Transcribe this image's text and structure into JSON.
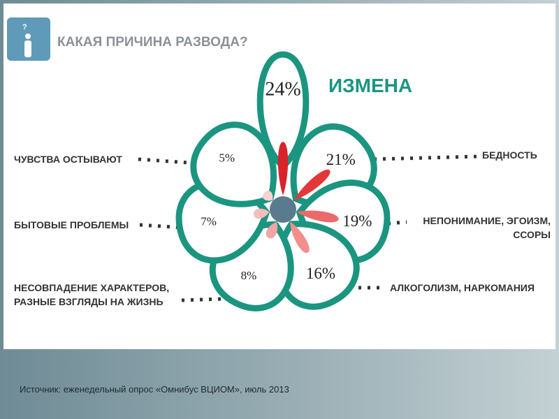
{
  "chart_data": {
    "type": "flower",
    "title": "КАКАЯ ПРИЧИНА РАЗВОДА?",
    "categories": [
      "ИЗМЕНА",
      "БЕДНОСТЬ",
      "НЕПОНИМАНИЕ, ЭГОИЗМ,\nССОРЫ",
      "АЛКОГОЛИЗМ, НАРКОМАНИЯ",
      "НЕСОВПАДЕНИЕ ХАРАКТЕРОВ,\nРАЗНЫЕ ВЗГЛЯДЫ НА ЖИЗНЬ",
      "БЫТОВЫЕ ПРОБЛЕМЫ",
      "ЧУВСТВА ОСТЫВАЮТ"
    ],
    "values": [
      24,
      21,
      19,
      16,
      8,
      7,
      5
    ],
    "value_labels": [
      "24%",
      "21%",
      "19%",
      "16%",
      "8%",
      "7%",
      "5%"
    ],
    "colors": [
      "#d9232a",
      "#e2383a",
      "#ea6a6a",
      "#f08f8c",
      "#f2a5a2",
      "#f6bdbb",
      "#f8d2d0"
    ],
    "outline_color": "#1b9580",
    "source": "Источник: еженедельный опрос «Омнибус ВЦИОМ», июль 2013"
  }
}
